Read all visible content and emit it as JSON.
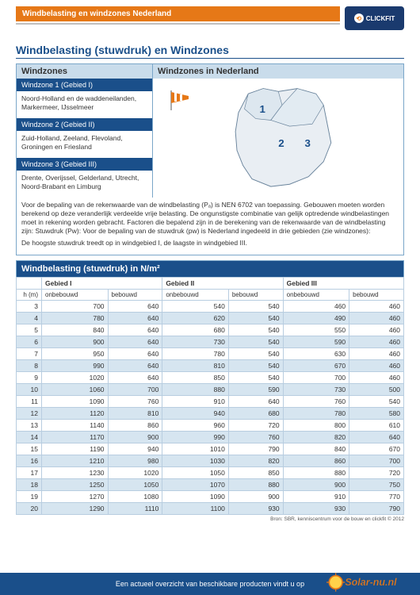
{
  "top": {
    "title": "Windbelasting en windzones Nederland",
    "brand": "CLICKFIT"
  },
  "page_title": "Windbelasting (stuwdruk) en Windzones",
  "zones_header": {
    "left": "Windzones",
    "right": "Windzones in Nederland"
  },
  "zones": [
    {
      "title": "Windzone 1 (Gebied I)",
      "desc": "Noord-Holland en de waddeneilanden, Markermeer, IJsselmeer"
    },
    {
      "title": "Windzone 2 (Gebied II)",
      "desc": "Zuid-Holland, Zeeland, Flevoland, Groningen en Friesland"
    },
    {
      "title": "Windzone 3 (Gebied III)",
      "desc": "Drente, Overijssel, Gelderland, Utrecht, Noord-Brabant en Limburg"
    }
  ],
  "map": {
    "labels": [
      "1",
      "2",
      "3"
    ],
    "bg": "#ffffff",
    "land": "#e9eef3",
    "outline": "#6a849c",
    "label_color": "#1a4f8a"
  },
  "description": {
    "p1": "Voor de bepaling van de rekenwaarde van de windbelasting (Pₐ) is NEN 6702 van toepassing. Gebouwen moeten worden berekend op deze veranderlijk verdeelde vrije belasting. De ongunstigste combinatie van gelijk optredende windbelastingen moet in rekening worden gebracht. Factoren die bepalend zijn in de berekening van de rekenwaarde van de windbelasting zijn:  Stuwdruk (Pw):  Voor de bepaling van de stuwdruk (pw) is Nederland ingedeeld in drie gebieden (zie windzones):",
    "p2": "De hoogste stuwdruk treedt op in windgebied I, de laagste in windgebied III."
  },
  "table": {
    "title": "Windbelasting (stuwdruk) in N/m²",
    "groups": [
      "Gebied I",
      "Gebied II",
      "Gebied III"
    ],
    "h_label": "h (m)",
    "subcols": [
      "onbebouwd",
      "bebouwd"
    ],
    "rows": [
      {
        "h": 3,
        "v": [
          700,
          640,
          540,
          540,
          460,
          460
        ]
      },
      {
        "h": 4,
        "v": [
          780,
          640,
          620,
          540,
          490,
          460
        ]
      },
      {
        "h": 5,
        "v": [
          840,
          640,
          680,
          540,
          550,
          460
        ]
      },
      {
        "h": 6,
        "v": [
          900,
          640,
          730,
          540,
          590,
          460
        ]
      },
      {
        "h": 7,
        "v": [
          950,
          640,
          780,
          540,
          630,
          460
        ]
      },
      {
        "h": 8,
        "v": [
          990,
          640,
          810,
          540,
          670,
          460
        ]
      },
      {
        "h": 9,
        "v": [
          1020,
          640,
          850,
          540,
          700,
          460
        ]
      },
      {
        "h": 10,
        "v": [
          1060,
          700,
          880,
          590,
          730,
          500
        ]
      },
      {
        "h": 11,
        "v": [
          1090,
          760,
          910,
          640,
          760,
          540
        ]
      },
      {
        "h": 12,
        "v": [
          1120,
          810,
          940,
          680,
          780,
          580
        ]
      },
      {
        "h": 13,
        "v": [
          1140,
          860,
          960,
          720,
          800,
          610
        ]
      },
      {
        "h": 14,
        "v": [
          1170,
          900,
          990,
          760,
          820,
          640
        ]
      },
      {
        "h": 15,
        "v": [
          1190,
          940,
          1010,
          790,
          840,
          670
        ]
      },
      {
        "h": 16,
        "v": [
          1210,
          980,
          1030,
          820,
          860,
          700
        ]
      },
      {
        "h": 17,
        "v": [
          1230,
          1020,
          1050,
          850,
          880,
          720
        ]
      },
      {
        "h": 18,
        "v": [
          1250,
          1050,
          1070,
          880,
          900,
          750
        ]
      },
      {
        "h": 19,
        "v": [
          1270,
          1080,
          1090,
          900,
          910,
          770
        ]
      },
      {
        "h": 20,
        "v": [
          1290,
          1110,
          1100,
          930,
          930,
          790
        ]
      }
    ],
    "colors": {
      "alt_bg": "#d6e5f0",
      "border": "#b8cde0",
      "header_bg": "#1a4f8a"
    },
    "source": "Bron: SBR, kenniscentrum voor de bouw en clickfit © 2012"
  },
  "footer": {
    "text": "Een actueel overzicht van beschikbare producten vindt u op",
    "logo_text": "Solar-nu.nl"
  }
}
